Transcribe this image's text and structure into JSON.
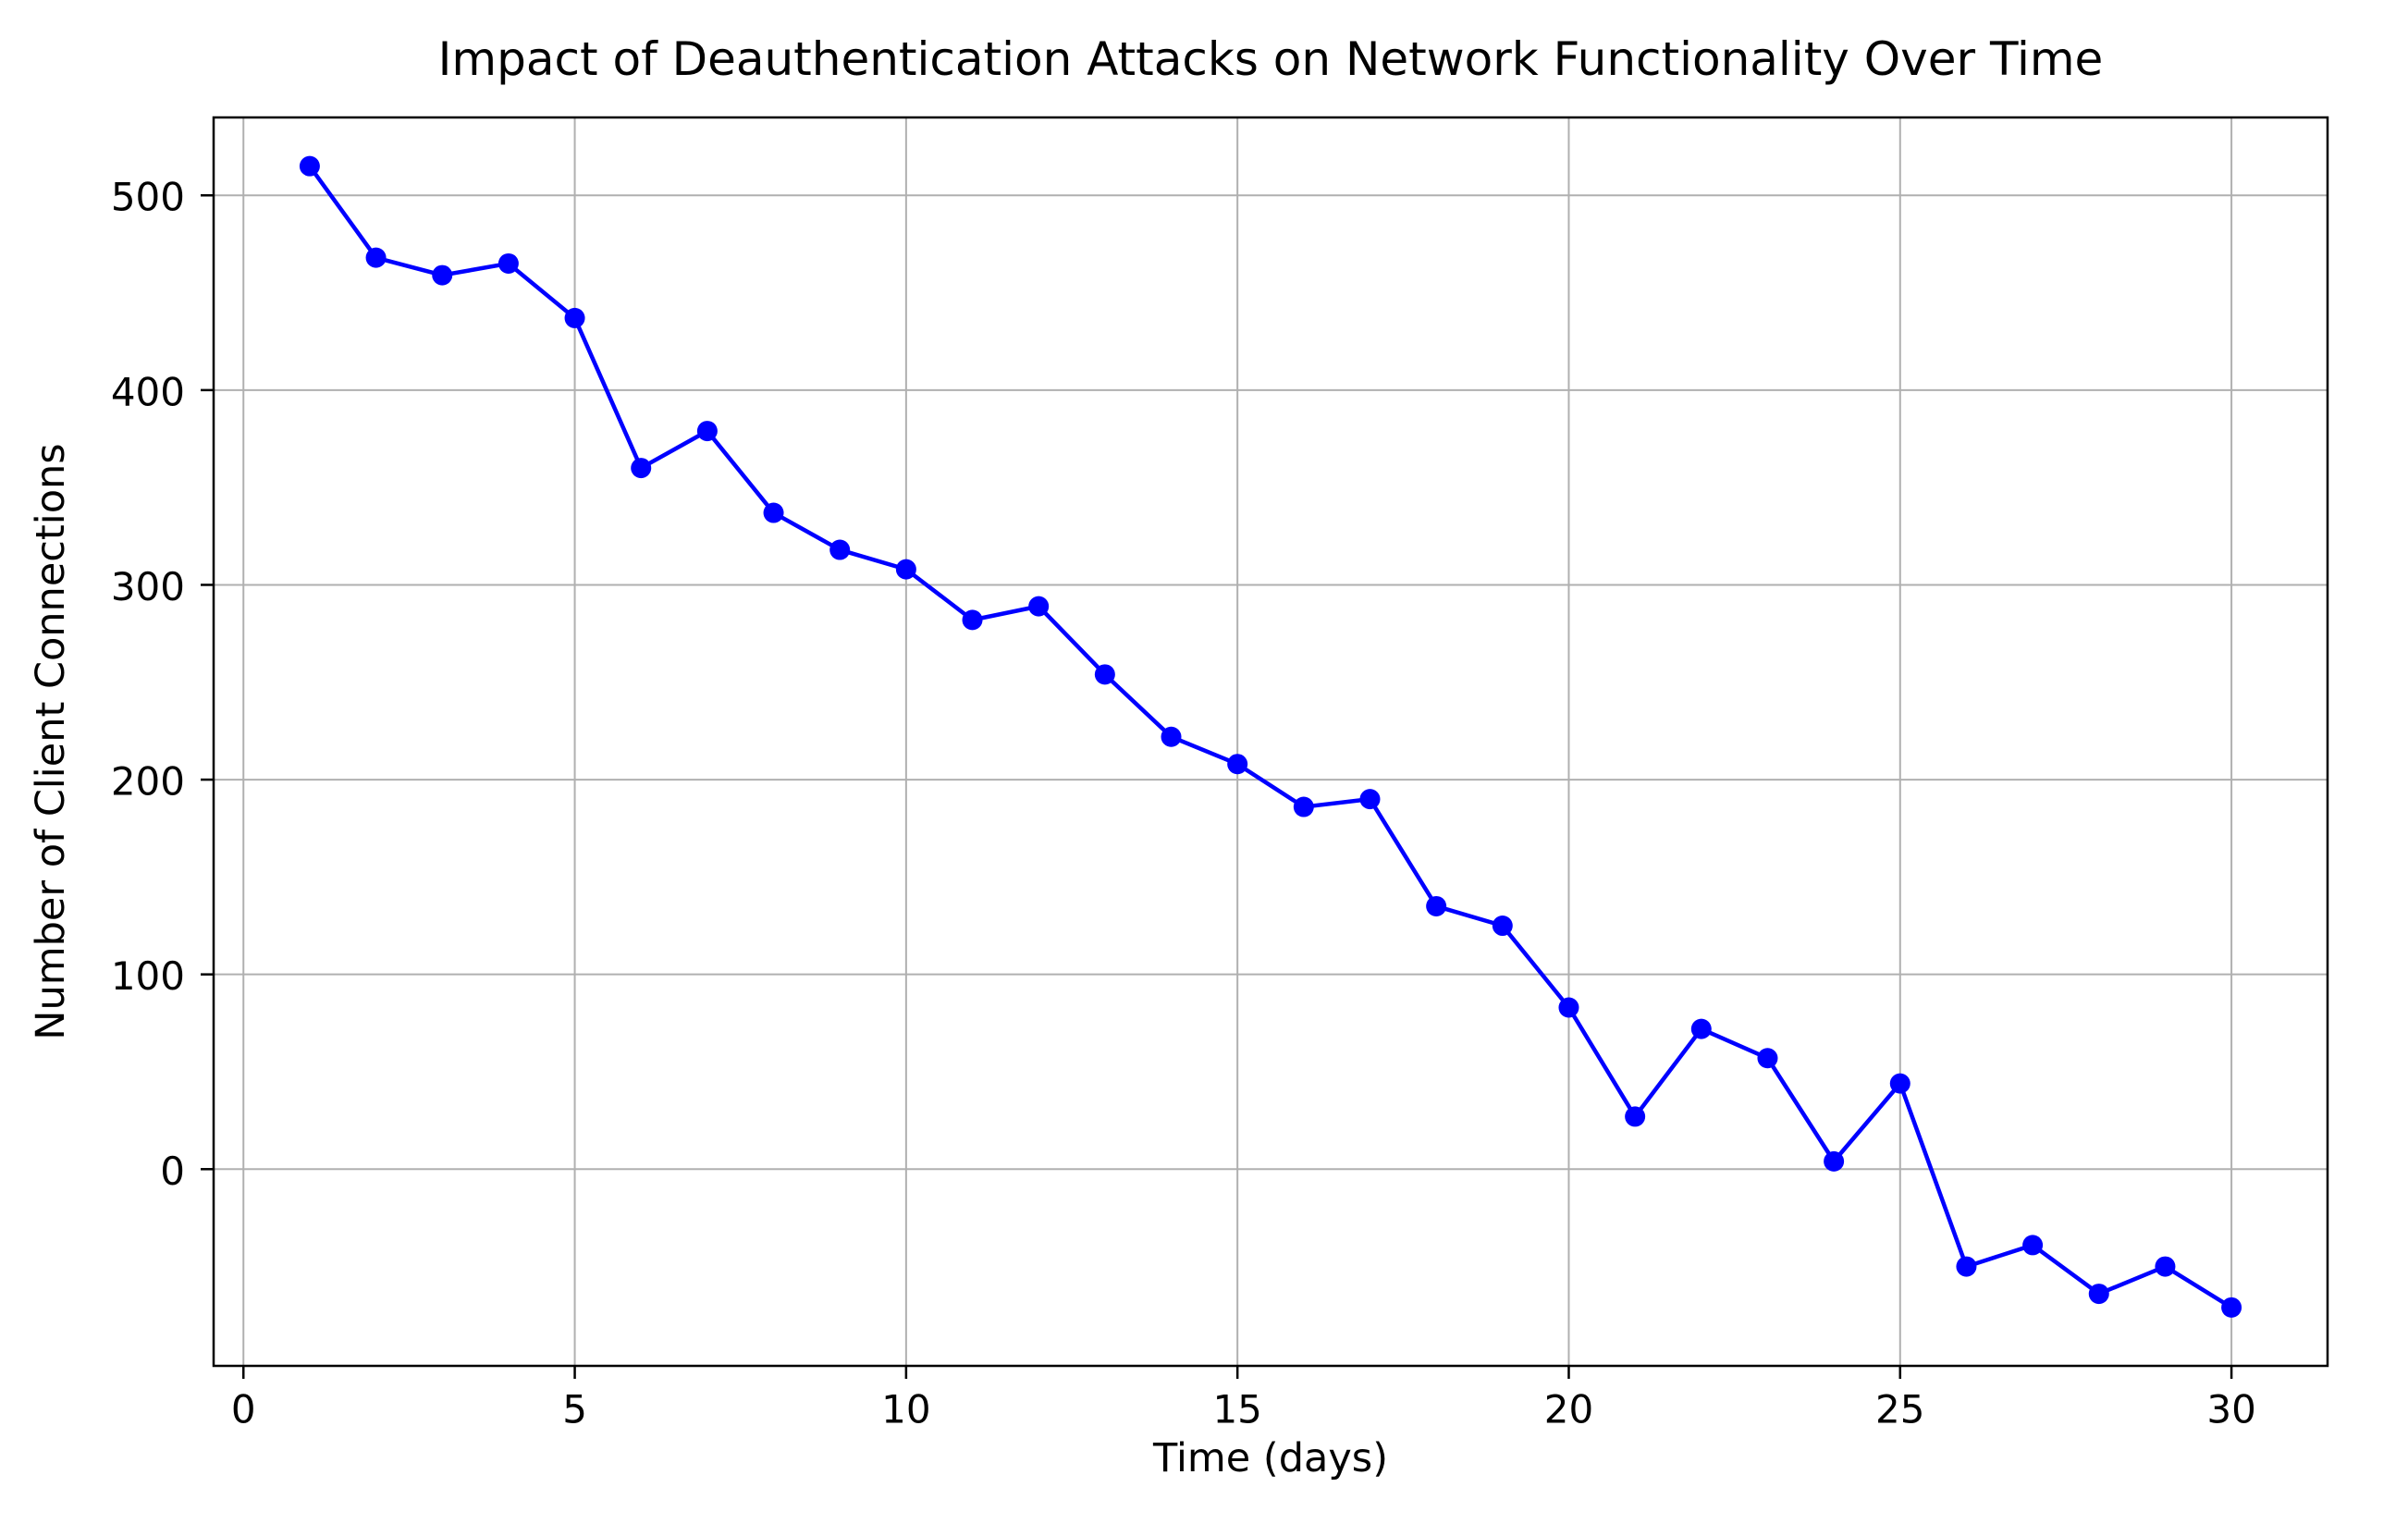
{
  "chart_data": {
    "type": "line",
    "title": "Impact of Deauthentication Attacks on Network Functionality Over Time",
    "xlabel": "Time (days)",
    "ylabel": "Number of Client Connections",
    "x": [
      1,
      2,
      3,
      4,
      5,
      6,
      7,
      8,
      9,
      10,
      11,
      12,
      13,
      14,
      15,
      16,
      17,
      18,
      19,
      20,
      21,
      22,
      23,
      24,
      25,
      26,
      27,
      28,
      29,
      30
    ],
    "values": [
      515,
      468,
      459,
      465,
      437,
      360,
      379,
      337,
      318,
      308,
      282,
      289,
      254,
      222,
      208,
      186,
      190,
      135,
      125,
      83,
      27,
      72,
      57,
      4,
      44,
      -50,
      -39,
      -64,
      -50,
      -71
    ],
    "x_ticks": [
      0,
      5,
      10,
      15,
      20,
      25,
      30
    ],
    "y_ticks": [
      0,
      100,
      200,
      300,
      400,
      500
    ],
    "xlim": [
      -0.45,
      31.45
    ],
    "ylim": [
      -101,
      540
    ],
    "grid": true,
    "legend": "none",
    "line_color": "#0000ff",
    "marker": "circle",
    "grid_color": "#b0b0b0",
    "spine_color": "#000000",
    "background_color": "#ffffff"
  }
}
